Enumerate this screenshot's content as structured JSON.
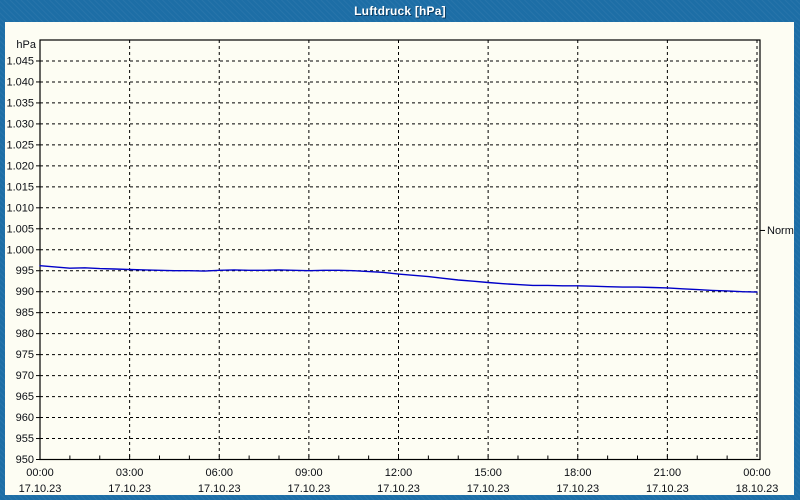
{
  "window": {
    "title": "Luftdruck [hPa]"
  },
  "colors": {
    "frame": "#1d6ea6",
    "content_bg": "#fdfdf3",
    "title_text": "#ffffff",
    "title_shadow": "#0d3d63",
    "axis": "#000000",
    "grid": "#000000",
    "label_text": "#0b0e14",
    "series_line": "#0000c8"
  },
  "chart_data": {
    "type": "line",
    "title": "Luftdruck [hPa]",
    "ylabel": "hPa",
    "xlabel": "",
    "ylim": [
      950,
      1050
    ],
    "y_tick_step": 5,
    "y_tick_values": [
      1045,
      1040,
      1035,
      1030,
      1025,
      1020,
      1015,
      1010,
      1005,
      1000,
      995,
      990,
      985,
      980,
      975,
      970,
      965,
      960,
      955,
      950
    ],
    "y_tick_labels": [
      "1.045",
      "1.040",
      "1.035",
      "1.030",
      "1.025",
      "1.020",
      "1.015",
      "1.010",
      "1.005",
      "1.000",
      "995",
      "990",
      "985",
      "980",
      "975",
      "970",
      "965",
      "960",
      "955",
      "950"
    ],
    "x_hours_total": 24,
    "x_minor_step_hours": 1,
    "x_ticks": [
      {
        "hour": 0,
        "time": "00:00",
        "date": "17.10.23"
      },
      {
        "hour": 3,
        "time": "03:00",
        "date": "17.10.23"
      },
      {
        "hour": 6,
        "time": "06:00",
        "date": "17.10.23"
      },
      {
        "hour": 9,
        "time": "09:00",
        "date": "17.10.23"
      },
      {
        "hour": 12,
        "time": "12:00",
        "date": "17.10.23"
      },
      {
        "hour": 15,
        "time": "15:00",
        "date": "17.10.23"
      },
      {
        "hour": 18,
        "time": "18:00",
        "date": "17.10.23"
      },
      {
        "hour": 21,
        "time": "21:00",
        "date": "17.10.23"
      },
      {
        "hour": 24,
        "time": "00:00",
        "date": "18.10.23"
      }
    ],
    "grid": "dashed",
    "legend_position": "none",
    "annotations": [
      {
        "label": "Normal",
        "value": 1004.6,
        "side": "right"
      }
    ],
    "series": [
      {
        "name": "Luftdruck",
        "unit": "hPa",
        "color": "#0000c8",
        "points": [
          [
            0,
            996.2
          ],
          [
            0.5,
            995.9
          ],
          [
            1,
            995.6
          ],
          [
            1.5,
            995.7
          ],
          [
            2,
            995.5
          ],
          [
            2.5,
            995.4
          ],
          [
            3,
            995.3
          ],
          [
            3.5,
            995.2
          ],
          [
            4,
            995.1
          ],
          [
            4.5,
            995.0
          ],
          [
            5,
            995.0
          ],
          [
            5.5,
            994.9
          ],
          [
            6,
            995.1
          ],
          [
            6.5,
            995.2
          ],
          [
            7,
            995.1
          ],
          [
            7.5,
            995.1
          ],
          [
            8,
            995.2
          ],
          [
            8.5,
            995.1
          ],
          [
            9,
            995.0
          ],
          [
            9.5,
            995.1
          ],
          [
            10,
            995.1
          ],
          [
            10.5,
            995.0
          ],
          [
            11,
            994.8
          ],
          [
            11.5,
            994.6
          ],
          [
            12,
            994.2
          ],
          [
            12.5,
            993.9
          ],
          [
            13,
            993.6
          ],
          [
            13.5,
            993.2
          ],
          [
            14,
            992.8
          ],
          [
            14.5,
            992.5
          ],
          [
            15,
            992.2
          ],
          [
            15.5,
            991.9
          ],
          [
            16,
            991.7
          ],
          [
            16.5,
            991.5
          ],
          [
            17,
            991.5
          ],
          [
            17.5,
            991.4
          ],
          [
            18,
            991.4
          ],
          [
            18.5,
            991.3
          ],
          [
            19,
            991.2
          ],
          [
            19.5,
            991.1
          ],
          [
            20,
            991.1
          ],
          [
            20.5,
            991.0
          ],
          [
            21,
            990.9
          ],
          [
            21.5,
            990.7
          ],
          [
            22,
            990.5
          ],
          [
            22.5,
            990.3
          ],
          [
            23,
            990.2
          ],
          [
            23.5,
            990.0
          ],
          [
            24,
            989.9
          ]
        ]
      }
    ]
  }
}
